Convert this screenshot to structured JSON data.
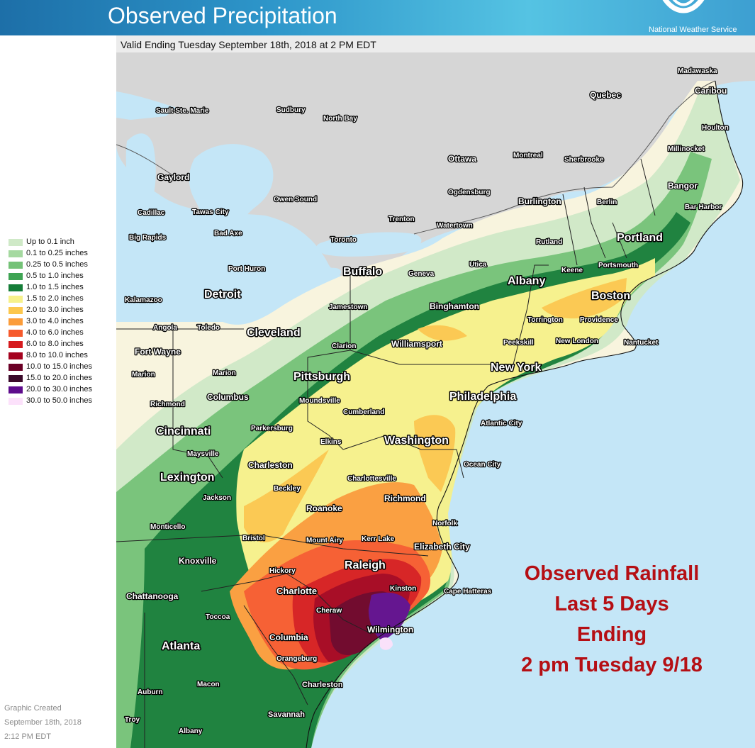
{
  "header": {
    "title": "Observed Precipitation",
    "agency": "National Weather Service",
    "valid": "Valid Ending Tuesday September 18th, 2018 at 2 PM EDT"
  },
  "legend": [
    {
      "label": "Up to 0.1 inch",
      "color": "#cfe9c7"
    },
    {
      "label": "0.1 to 0.25 inches",
      "color": "#a5d9a0"
    },
    {
      "label": "0.25 to 0.5 inches",
      "color": "#74c277"
    },
    {
      "label": "0.5 to 1.0 inches",
      "color": "#3ea453"
    },
    {
      "label": "1.0 to 1.5 inches",
      "color": "#157d38"
    },
    {
      "label": "1.5 to 2.0 inches",
      "color": "#f6f18a"
    },
    {
      "label": "2.0 to 3.0 inches",
      "color": "#fcc74d"
    },
    {
      "label": "3.0 to 4.0 inches",
      "color": "#fb9c3a"
    },
    {
      "label": "4.0 to 6.0 inches",
      "color": "#f65a2c"
    },
    {
      "label": "6.0 to 8.0 inches",
      "color": "#d61b1e"
    },
    {
      "label": "8.0 to 10.0 inches",
      "color": "#a4021e"
    },
    {
      "label": "10.0 to 15.0 inches",
      "color": "#6b0026"
    },
    {
      "label": "15.0 to 20.0 inches",
      "color": "#3b0a2a"
    },
    {
      "label": "20.0 to 30.0 inches",
      "color": "#5e0b8c"
    },
    {
      "label": "30.0 to 50.0 inches",
      "color": "#fce1fb"
    }
  ],
  "credit": [
    "Graphic Created",
    "September 18th, 2018",
    "2:12 PM EDT"
  ],
  "note": [
    "Observed Rainfall",
    "Last 5 Days",
    "Ending",
    "2 pm Tuesday 9/18"
  ],
  "cities": {
    "madawaska": "Madawaska",
    "caribou": "Caribou",
    "quebec": "Quebec",
    "houlton": "Houlton",
    "sault": "Sault Ste. Marie",
    "sudbury": "Sudbury",
    "north_bay": "North Bay",
    "millinocket": "Millinocket",
    "montreal": "Montreal",
    "sherbrooke": "Sherbrooke",
    "ottawa": "Ottawa",
    "gaylord": "Gaylord",
    "bangor": "Bangor",
    "ogdensburg": "Ogdensburg",
    "owen_sound": "Owen Sound",
    "burlington": "Burlington",
    "berlin": "Berlin",
    "bar_harbor": "Bar Harbor",
    "cadillac": "Cadillac",
    "tawas": "Tawas City",
    "trenton": "Trenton",
    "watertown": "Watertown",
    "big_rapids": "Big Rapids",
    "bad_axe": "Bad Axe",
    "toronto": "Toronto",
    "portland": "Portland",
    "rutland": "Rutland",
    "port_huron": "Port Huron",
    "buffalo": "Buffalo",
    "geneva": "Geneva",
    "utica": "Utica",
    "portsmouth": "Portsmouth",
    "keene": "Keene",
    "albany": "Albany",
    "detroit": "Detroit",
    "boston": "Boston",
    "kalamazoo": "Kalamazoo",
    "jamestown": "Jamestown",
    "binghamton": "Binghamton",
    "torrington": "Torrington",
    "providence": "Providence",
    "angola": "Angola",
    "toledo": "Toledo",
    "cleveland": "Cleveland",
    "new_london": "New London",
    "nantucket": "Nantucket",
    "clarion": "Clarion",
    "williamsport": "Williamsport",
    "peekskill": "Peekskill",
    "fort_wayne": "Fort Wayne",
    "new_york": "New York",
    "pittsburgh": "Pittsburgh",
    "marion_in": "Marion",
    "marion_oh": "Marion",
    "philadelphia": "Philadelphia",
    "columbus": "Columbus",
    "moundsville": "Moundsville",
    "richmond_in": "Richmond",
    "cumberland": "Cumberland",
    "atlantic_city": "Atlantic City",
    "parkersburg": "Parkersburg",
    "cincinnati": "Cincinnati",
    "washington": "Washington",
    "elkins": "Elkins",
    "maysville": "Maysville",
    "charleston_wv": "Charleston",
    "ocean_city": "Ocean City",
    "lexington": "Lexington",
    "charlottesville": "Charlottesville",
    "beckley": "Beckley",
    "jackson": "Jackson",
    "richmond_va": "Richmond",
    "roanoke": "Roanoke",
    "norfolk": "Norfolk",
    "monticello": "Monticello",
    "bristol": "Bristol",
    "mount_airy": "Mount Airy",
    "kerr_lake": "Kerr Lake",
    "elizabeth_city": "Elizabeth City",
    "knoxville": "Knoxville",
    "raleigh": "Raleigh",
    "hickory": "Hickory",
    "kinston": "Kinston",
    "charlotte": "Charlotte",
    "cape_hatteras": "Cape Hatteras",
    "chattanooga": "Chattanooga",
    "cheraw": "Cheraw",
    "toccoa": "Toccoa",
    "wilmington": "Wilmington",
    "columbia": "Columbia",
    "atlanta": "Atlanta",
    "orangeburg": "Orangeburg",
    "macon": "Macon",
    "charleston_sc": "Charleston",
    "auburn": "Auburn",
    "savannah": "Savannah",
    "troy": "Troy",
    "albany_ga": "Albany"
  }
}
